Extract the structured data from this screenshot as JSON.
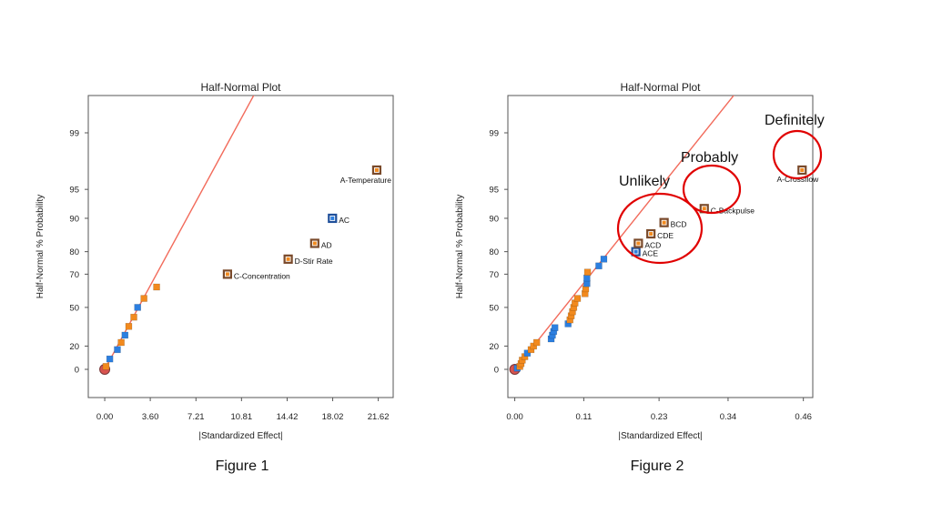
{
  "colors": {
    "positive": "#F28A1E",
    "negative": "#2C7FE0",
    "significant_fill": "#F28A1E",
    "significant_border": "#7A4A2B",
    "fit_line": "#F26B5B",
    "annotation_circle": "#E00000",
    "error_marker": "#D9534F"
  },
  "chart_data": [
    {
      "type": "scatter",
      "title": "Half-Normal Plot",
      "xlabel": "|Standardized Effect|",
      "ylabel": "Half-Normal % Probability",
      "caption": "Figure 1",
      "x_ticks": [
        "0.00",
        "3.60",
        "7.21",
        "10.81",
        "14.42",
        "18.02",
        "21.62"
      ],
      "x_tick_values": [
        0,
        3.6,
        7.21,
        10.81,
        14.42,
        18.02,
        21.62
      ],
      "y_ticks": [
        "0",
        "20",
        "50",
        "70",
        "80",
        "90",
        "95",
        "99"
      ],
      "y_tick_values": [
        0,
        20,
        50,
        70,
        80,
        90,
        95,
        99
      ],
      "xlim": [
        -1.3,
        22.8
      ],
      "fit_line": [
        [
          0,
          0
        ],
        [
          12.2,
          99.8
        ]
      ],
      "error_point": [
        0,
        0
      ],
      "points": [
        {
          "x": 0.1,
          "p": 2.5,
          "sign": "positive"
        },
        {
          "x": 0.4,
          "p": 9,
          "sign": "negative"
        },
        {
          "x": 1.0,
          "p": 17,
          "sign": "negative"
        },
        {
          "x": 1.3,
          "p": 23,
          "sign": "positive"
        },
        {
          "x": 1.6,
          "p": 29,
          "sign": "negative"
        },
        {
          "x": 1.9,
          "p": 36,
          "sign": "positive"
        },
        {
          "x": 2.3,
          "p": 43,
          "sign": "positive"
        },
        {
          "x": 2.6,
          "p": 50,
          "sign": "negative"
        },
        {
          "x": 3.1,
          "p": 56,
          "sign": "positive"
        },
        {
          "x": 4.1,
          "p": 63,
          "sign": "positive"
        },
        {
          "x": 9.7,
          "p": 70,
          "sign": "positive",
          "label": "C-Concentration",
          "significant": true
        },
        {
          "x": 14.5,
          "p": 77,
          "sign": "positive",
          "label": "D-Stir Rate",
          "significant": true
        },
        {
          "x": 16.6,
          "p": 83,
          "sign": "positive",
          "label": "AD",
          "significant": true
        },
        {
          "x": 18.0,
          "p": 90,
          "sign": "negative",
          "label": "AC",
          "significant": true
        },
        {
          "x": 21.5,
          "p": 97,
          "sign": "positive",
          "label": "A-Temperature",
          "significant": true
        }
      ]
    },
    {
      "type": "scatter",
      "title": "Half-Normal Plot",
      "xlabel": "|Standardized Effect|",
      "ylabel": "Half-Normal % Probability",
      "caption": "Figure 2",
      "x_ticks": [
        "0.00",
        "0.11",
        "0.23",
        "0.34",
        "0.46"
      ],
      "x_tick_values": [
        0,
        0.11,
        0.23,
        0.34,
        0.46
      ],
      "y_ticks": [
        "0",
        "20",
        "50",
        "70",
        "80",
        "90",
        "95",
        "99"
      ],
      "y_tick_values": [
        0,
        20,
        50,
        70,
        80,
        90,
        95,
        99
      ],
      "xlim": [
        -0.011,
        0.475
      ],
      "fit_line": [
        [
          0,
          0
        ],
        [
          0.385,
          99.9
        ]
      ],
      "error_point": [
        0,
        0
      ],
      "points": [
        {
          "x": 0.004,
          "p": 1,
          "sign": "negative"
        },
        {
          "x": 0.008,
          "p": 2.5,
          "sign": "positive"
        },
        {
          "x": 0.01,
          "p": 5,
          "sign": "positive"
        },
        {
          "x": 0.012,
          "p": 8,
          "sign": "positive"
        },
        {
          "x": 0.016,
          "p": 11,
          "sign": "positive"
        },
        {
          "x": 0.02,
          "p": 14,
          "sign": "negative"
        },
        {
          "x": 0.026,
          "p": 17,
          "sign": "positive"
        },
        {
          "x": 0.03,
          "p": 20,
          "sign": "positive"
        },
        {
          "x": 0.035,
          "p": 23,
          "sign": "positive"
        },
        {
          "x": 0.058,
          "p": 26,
          "sign": "negative"
        },
        {
          "x": 0.06,
          "p": 29,
          "sign": "negative"
        },
        {
          "x": 0.062,
          "p": 32,
          "sign": "negative"
        },
        {
          "x": 0.064,
          "p": 35,
          "sign": "negative"
        },
        {
          "x": 0.085,
          "p": 38,
          "sign": "negative"
        },
        {
          "x": 0.088,
          "p": 41,
          "sign": "positive"
        },
        {
          "x": 0.09,
          "p": 44,
          "sign": "positive"
        },
        {
          "x": 0.092,
          "p": 47,
          "sign": "positive"
        },
        {
          "x": 0.094,
          "p": 50,
          "sign": "positive"
        },
        {
          "x": 0.096,
          "p": 53,
          "sign": "positive"
        },
        {
          "x": 0.1,
          "p": 56,
          "sign": "positive"
        },
        {
          "x": 0.112,
          "p": 59,
          "sign": "positive"
        },
        {
          "x": 0.113,
          "p": 62,
          "sign": "positive"
        },
        {
          "x": 0.115,
          "p": 65,
          "sign": "negative"
        },
        {
          "x": 0.115,
          "p": 68,
          "sign": "negative"
        },
        {
          "x": 0.116,
          "p": 71,
          "sign": "positive"
        },
        {
          "x": 0.134,
          "p": 74,
          "sign": "negative"
        },
        {
          "x": 0.142,
          "p": 77,
          "sign": "negative"
        },
        {
          "x": 0.193,
          "p": 80,
          "sign": "negative",
          "label": "ACE",
          "significant": true
        },
        {
          "x": 0.197,
          "p": 83,
          "sign": "positive",
          "label": "ACD",
          "significant": true
        },
        {
          "x": 0.217,
          "p": 86,
          "sign": "positive",
          "label": "CDE",
          "significant": true
        },
        {
          "x": 0.238,
          "p": 89,
          "sign": "positive",
          "label": "BCD",
          "significant": true
        },
        {
          "x": 0.302,
          "p": 92,
          "sign": "positive",
          "label": "C-Backpulse",
          "significant": true
        },
        {
          "x": 0.458,
          "p": 97,
          "sign": "positive",
          "label": "A-Crossflow",
          "significant": true
        }
      ],
      "annotations": [
        {
          "text": "Unlikely"
        },
        {
          "text": "Probably"
        },
        {
          "text": "Definitely"
        }
      ]
    }
  ]
}
